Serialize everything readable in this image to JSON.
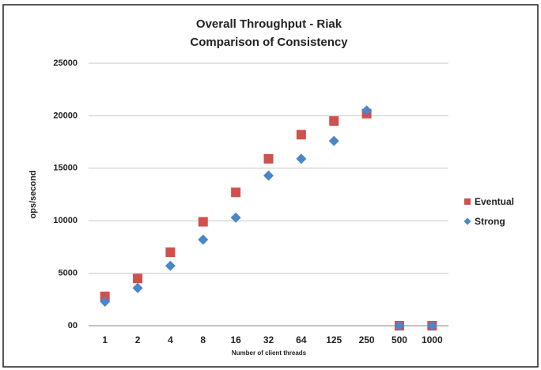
{
  "chart_data": {
    "type": "scatter",
    "title": "Overall Throughput - Riak",
    "subtitle": "Comparison of Consistency",
    "x_label": "Number of client threads",
    "y_label": "ops/second",
    "categories": [
      "1",
      "2",
      "4",
      "8",
      "16",
      "32",
      "64",
      "125",
      "250",
      "500",
      "1000"
    ],
    "series": [
      {
        "name": "Eventual",
        "color": "#d0504d",
        "marker": "square",
        "values": [
          2800,
          4500,
          7000,
          9900,
          12700,
          15900,
          18200,
          19500,
          20200,
          0,
          0
        ]
      },
      {
        "name": "Strong",
        "color": "#4a86c8",
        "marker": "diamond",
        "values": [
          2300,
          3600,
          5700,
          8200,
          10300,
          14300,
          15900,
          17600,
          20500,
          0,
          0
        ]
      }
    ],
    "ylim": [
      0,
      25000
    ],
    "yticks": [
      {
        "value": 0,
        "label": "00"
      },
      5000,
      10000,
      15000,
      20000,
      25000
    ],
    "grid": true,
    "legend": "right"
  }
}
